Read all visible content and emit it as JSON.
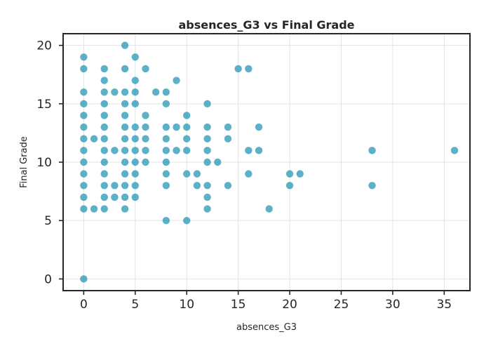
{
  "chart_data": {
    "type": "scatter",
    "title": "absences_G3 vs Final Grade",
    "xlabel": "absences_G3",
    "ylabel": "Final Grade",
    "xlim": [
      -2,
      37.5
    ],
    "ylim": [
      -1,
      21
    ],
    "xticks": [
      0,
      5,
      10,
      15,
      20,
      25,
      30,
      35
    ],
    "yticks": [
      0,
      5,
      10,
      15,
      20
    ],
    "grid": true,
    "point_color": "#2596b4",
    "point_opacity": 0.75,
    "points": [
      [
        0,
        0
      ],
      [
        0,
        6
      ],
      [
        0,
        7
      ],
      [
        0,
        8
      ],
      [
        0,
        9
      ],
      [
        0,
        10
      ],
      [
        0,
        11
      ],
      [
        0,
        12
      ],
      [
        0,
        13
      ],
      [
        0,
        14
      ],
      [
        0,
        15
      ],
      [
        0,
        16
      ],
      [
        0,
        18
      ],
      [
        0,
        19
      ],
      [
        1,
        6
      ],
      [
        1,
        12
      ],
      [
        2,
        6
      ],
      [
        2,
        7
      ],
      [
        2,
        8
      ],
      [
        2,
        9
      ],
      [
        2,
        10
      ],
      [
        2,
        11
      ],
      [
        2,
        12
      ],
      [
        2,
        13
      ],
      [
        2,
        14
      ],
      [
        2,
        15
      ],
      [
        2,
        16
      ],
      [
        2,
        17
      ],
      [
        2,
        18
      ],
      [
        3,
        7
      ],
      [
        3,
        8
      ],
      [
        3,
        11
      ],
      [
        3,
        16
      ],
      [
        4,
        6
      ],
      [
        4,
        7
      ],
      [
        4,
        8
      ],
      [
        4,
        9
      ],
      [
        4,
        10
      ],
      [
        4,
        11
      ],
      [
        4,
        12
      ],
      [
        4,
        13
      ],
      [
        4,
        14
      ],
      [
        4,
        15
      ],
      [
        4,
        16
      ],
      [
        4,
        18
      ],
      [
        4,
        20
      ],
      [
        5,
        7
      ],
      [
        5,
        8
      ],
      [
        5,
        9
      ],
      [
        5,
        10
      ],
      [
        5,
        11
      ],
      [
        5,
        12
      ],
      [
        5,
        13
      ],
      [
        5,
        15
      ],
      [
        5,
        16
      ],
      [
        5,
        17
      ],
      [
        5,
        19
      ],
      [
        6,
        10
      ],
      [
        6,
        11
      ],
      [
        6,
        12
      ],
      [
        6,
        13
      ],
      [
        6,
        14
      ],
      [
        6,
        18
      ],
      [
        7,
        16
      ],
      [
        8,
        5
      ],
      [
        8,
        8
      ],
      [
        8,
        9
      ],
      [
        8,
        10
      ],
      [
        8,
        11
      ],
      [
        8,
        12
      ],
      [
        8,
        13
      ],
      [
        8,
        15
      ],
      [
        8,
        16
      ],
      [
        9,
        11
      ],
      [
        9,
        13
      ],
      [
        9,
        17
      ],
      [
        10,
        5
      ],
      [
        10,
        9
      ],
      [
        10,
        11
      ],
      [
        10,
        12
      ],
      [
        10,
        13
      ],
      [
        10,
        14
      ],
      [
        11,
        8
      ],
      [
        11,
        9
      ],
      [
        12,
        6
      ],
      [
        12,
        7
      ],
      [
        12,
        8
      ],
      [
        12,
        10
      ],
      [
        12,
        11
      ],
      [
        12,
        12
      ],
      [
        12,
        13
      ],
      [
        12,
        15
      ],
      [
        13,
        10
      ],
      [
        14,
        8
      ],
      [
        14,
        12
      ],
      [
        14,
        13
      ],
      [
        15,
        18
      ],
      [
        16,
        9
      ],
      [
        16,
        11
      ],
      [
        16,
        18
      ],
      [
        17,
        11
      ],
      [
        17,
        13
      ],
      [
        18,
        6
      ],
      [
        20,
        8
      ],
      [
        20,
        9
      ],
      [
        21,
        9
      ],
      [
        28,
        8
      ],
      [
        28,
        11
      ],
      [
        36,
        11
      ]
    ]
  }
}
